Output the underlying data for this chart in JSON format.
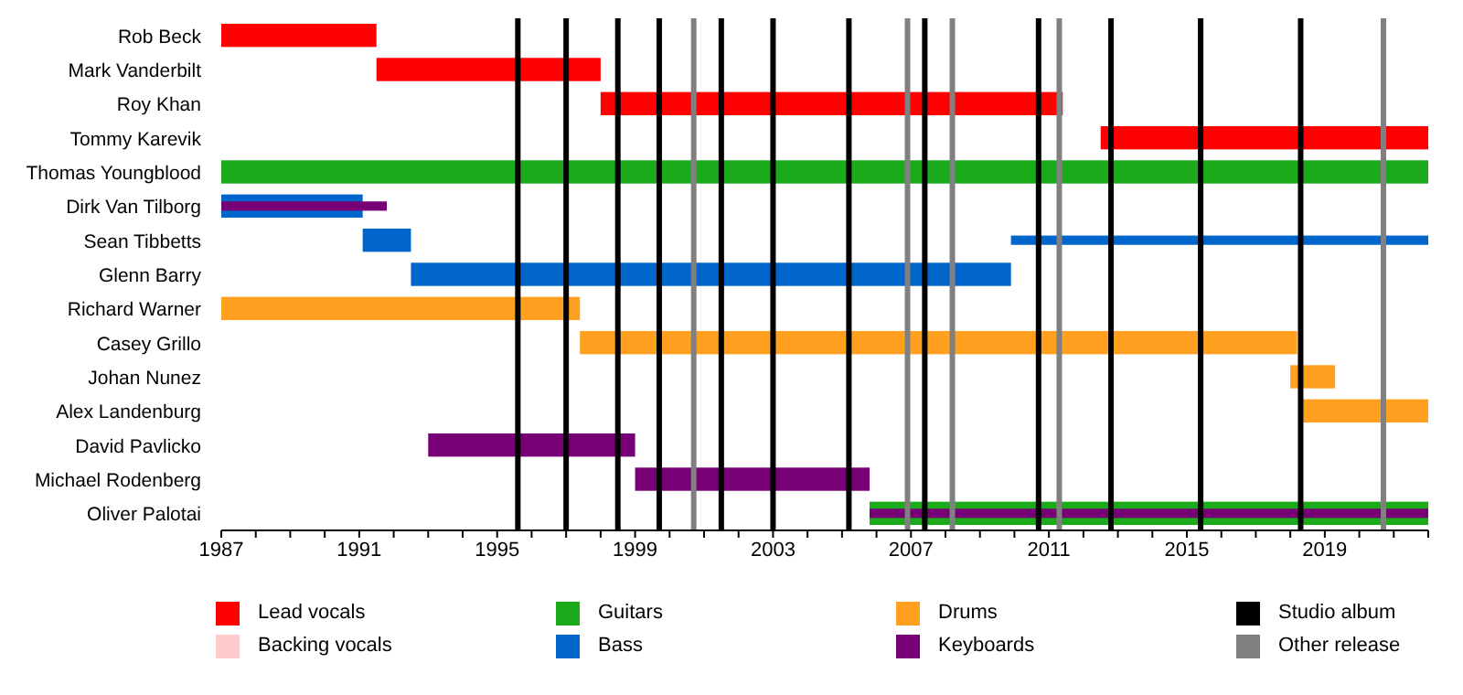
{
  "chart_data": {
    "type": "bar",
    "orientation": "horizontal",
    "categories": [
      "Rob Beck",
      "Mark Vanderbilt",
      "Roy Khan",
      "Tommy Karevik",
      "Thomas Youngblood",
      "Dirk Van Tilborg",
      "Sean Tibbetts",
      "Glenn Barry",
      "Richard Warner",
      "Casey Grillo",
      "Johan Nunez",
      "Alex Landenburg",
      "David Pavlicko",
      "Michael Rodenberg",
      "Oliver Palotai"
    ],
    "series": [
      {
        "name": "Lead vocals",
        "color": "#ff0000",
        "values": [
          4.5,
          6.5,
          13.4,
          9.5,
          null,
          null,
          null,
          null,
          null,
          null,
          null,
          null,
          null,
          null,
          null
        ],
        "base": [
          1987,
          1991.5,
          1998,
          2012.5,
          null,
          null,
          null,
          null,
          null,
          null,
          null,
          null,
          null,
          null,
          null
        ]
      },
      {
        "name": "Backing vocals",
        "color": "#ffcccc",
        "values": [
          null,
          null,
          null,
          null,
          null,
          null,
          null,
          null,
          null,
          null,
          null,
          null,
          null,
          null,
          null
        ]
      },
      {
        "name": "Guitars",
        "color": "#1aaa1a",
        "values": [
          null,
          null,
          null,
          null,
          35,
          null,
          null,
          null,
          null,
          null,
          null,
          null,
          null,
          null,
          16.2
        ],
        "base": [
          null,
          null,
          null,
          null,
          1987,
          null,
          null,
          null,
          null,
          null,
          null,
          null,
          null,
          null,
          2005.8
        ]
      },
      {
        "name": "Bass",
        "color": "#0066cc",
        "values": [
          null,
          null,
          null,
          null,
          null,
          4.1,
          1.4,
          17.4,
          null,
          null,
          null,
          null,
          null,
          null,
          null
        ],
        "base": [
          null,
          null,
          null,
          null,
          null,
          1987,
          1991.1,
          1992.5,
          null,
          null,
          null,
          null,
          null,
          null,
          null
        ]
      },
      {
        "name": "Drums",
        "color": "#ffa020",
        "values": [
          null,
          null,
          null,
          null,
          null,
          null,
          null,
          null,
          10.4,
          20.8,
          1.3,
          3.7,
          null,
          null,
          null
        ],
        "base": [
          null,
          null,
          null,
          null,
          null,
          null,
          null,
          null,
          1987,
          1997.4,
          2018,
          2018.3,
          null,
          null,
          null
        ]
      },
      {
        "name": "Keyboards",
        "color": "#770077",
        "values": [
          null,
          null,
          null,
          null,
          null,
          4.8,
          null,
          null,
          null,
          null,
          null,
          null,
          6,
          6.8,
          16.2
        ],
        "base": [
          null,
          null,
          null,
          null,
          null,
          1987,
          null,
          null,
          null,
          null,
          null,
          null,
          1993,
          1999,
          2005.8
        ]
      },
      {
        "color": "#0066cc",
        "values": [
          null,
          null,
          null,
          null,
          null,
          null,
          12.1,
          null,
          null,
          null,
          null,
          null,
          null,
          null,
          null
        ],
        "base": [
          null,
          null,
          null,
          null,
          null,
          null,
          2009.9,
          null,
          null,
          null,
          null,
          null,
          null,
          null,
          null
        ]
      }
    ],
    "xlim": [
      1987,
      2022
    ],
    "xticks": [
      1987,
      {
        "value": 1988,
        "label": null
      },
      {
        "value": 1989,
        "label": null
      },
      {
        "value": 1990,
        "label": null
      },
      1991,
      {
        "value": 1992,
        "label": null
      },
      {
        "value": 1993,
        "label": null
      },
      {
        "value": 1994,
        "label": null
      },
      1995,
      {
        "value": 1996,
        "label": null
      },
      {
        "value": 1997,
        "label": null
      },
      {
        "value": 1998,
        "label": null
      },
      1999,
      {
        "value": 2000,
        "label": null
      },
      {
        "value": 2001,
        "label": null
      },
      {
        "value": 2002,
        "label": null
      },
      2003,
      {
        "value": 2004,
        "label": null
      },
      {
        "value": 2005,
        "label": null
      },
      {
        "value": 2006,
        "label": null
      },
      2007,
      {
        "value": 2008,
        "label": null
      },
      {
        "value": 2009,
        "label": null
      },
      {
        "value": 2010,
        "label": null
      },
      2011,
      {
        "value": 2012,
        "label": null
      },
      {
        "value": 2013,
        "label": null
      },
      {
        "value": 2014,
        "label": null
      },
      2015,
      {
        "value": 2016,
        "label": null
      },
      {
        "value": 2017,
        "label": null
      },
      {
        "value": 2018,
        "label": null
      },
      2019,
      {
        "value": 2020,
        "label": null
      },
      {
        "value": 2021,
        "label": null
      },
      {
        "value": 2022,
        "label": null
      }
    ],
    "ref_lines": [
      {
        "axis": "x",
        "value": 1995.6,
        "label": "Studio album",
        "color": "#000000"
      },
      {
        "axis": "x",
        "value": 1997,
        "color": "#000000"
      },
      {
        "axis": "x",
        "value": 1998.5,
        "color": "#000000"
      },
      {
        "axis": "x",
        "value": 1999.7,
        "color": "#000000"
      },
      {
        "axis": "x",
        "value": 2000.7,
        "label": "Other release",
        "color": "#808080"
      },
      {
        "axis": "x",
        "value": 2001.5,
        "color": "#000000"
      },
      {
        "axis": "x",
        "value": 2003,
        "color": "#000000"
      },
      {
        "axis": "x",
        "value": 2005.2,
        "color": "#000000"
      },
      {
        "axis": "x",
        "value": 2006.9,
        "color": "#808080"
      },
      {
        "axis": "x",
        "value": 2007.4,
        "color": "#000000"
      },
      {
        "axis": "x",
        "value": 2008.2,
        "color": "#808080"
      },
      {
        "axis": "x",
        "value": 2010.7,
        "color": "#000000"
      },
      {
        "axis": "x",
        "value": 2011.3,
        "color": "#808080"
      },
      {
        "axis": "x",
        "value": 2012.8,
        "color": "#000000"
      },
      {
        "axis": "x",
        "value": 2015.4,
        "color": "#000000"
      },
      {
        "axis": "x",
        "value": 2018.3,
        "color": "#000000"
      },
      {
        "axis": "x",
        "value": 2020.7,
        "color": "#808080"
      }
    ],
    "legend": "bottom"
  }
}
